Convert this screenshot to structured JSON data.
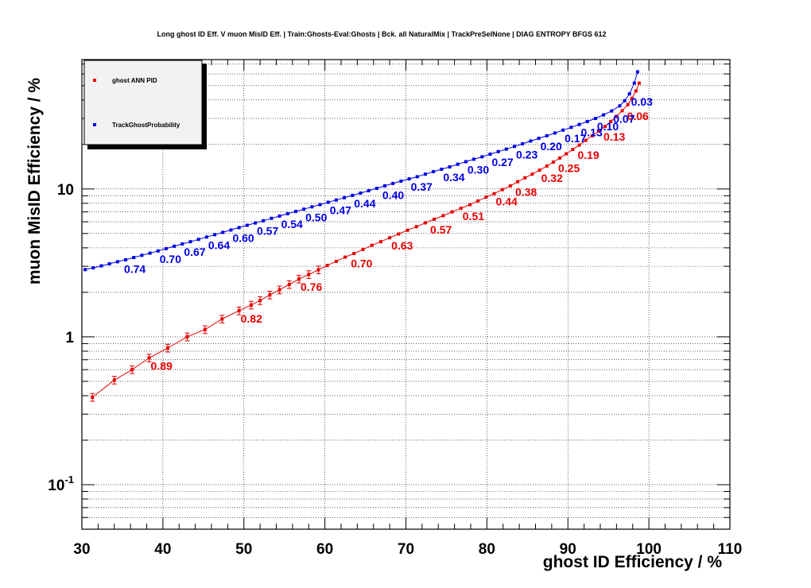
{
  "chart_data": {
    "type": "scatter",
    "title": "Long ghost ID Eff. V muon MisID Eff. | Train:Ghosts-Eval:Ghosts | Bck. all NaturalMix | TrackPreSelNone | DIAG ENTROPY BFGS 612",
    "xlabel": "ghost ID Efficiency / %",
    "ylabel": "muon MisID Efficiency / %",
    "xlim": [
      30,
      110
    ],
    "ylim": [
      0.05,
      75
    ],
    "yscale": "log",
    "grid": true,
    "legend_position": "top-left",
    "x_tick_labels": [
      "30",
      "40",
      "50",
      "60",
      "70",
      "80",
      "90",
      "100",
      "110"
    ],
    "y_tick_labels": [
      {
        "value": 0.1,
        "base": "10",
        "exp": "-1"
      },
      {
        "value": 1,
        "base": "1",
        "exp": ""
      },
      {
        "value": 10,
        "base": "10",
        "exp": ""
      }
    ],
    "series": [
      {
        "name": "ghost ANN PID",
        "color": "#e60000",
        "points": [
          [
            31.3,
            0.39
          ],
          [
            34.0,
            0.51
          ],
          [
            36.2,
            0.6
          ],
          [
            38.3,
            0.72
          ],
          [
            40.6,
            0.84
          ],
          [
            43.0,
            1.0
          ],
          [
            45.2,
            1.12
          ],
          [
            47.3,
            1.32
          ],
          [
            49.4,
            1.5
          ],
          [
            50.9,
            1.64
          ],
          [
            52.0,
            1.76
          ],
          [
            53.2,
            1.92
          ],
          [
            54.4,
            2.08
          ],
          [
            55.6,
            2.26
          ],
          [
            56.8,
            2.46
          ],
          [
            58.0,
            2.64
          ],
          [
            59.2,
            2.84
          ],
          [
            60.3,
            3.04
          ],
          [
            61.4,
            3.24
          ],
          [
            62.5,
            3.46
          ],
          [
            63.6,
            3.66
          ],
          [
            64.7,
            3.9
          ],
          [
            65.8,
            4.16
          ],
          [
            66.9,
            4.4
          ],
          [
            68.0,
            4.68
          ],
          [
            69.1,
            4.96
          ],
          [
            70.2,
            5.26
          ],
          [
            71.3,
            5.56
          ],
          [
            72.4,
            5.9
          ],
          [
            73.5,
            6.24
          ],
          [
            74.6,
            6.6
          ],
          [
            75.7,
            7.0
          ],
          [
            76.8,
            7.4
          ],
          [
            77.9,
            7.84
          ],
          [
            78.9,
            8.3
          ],
          [
            79.9,
            8.8
          ],
          [
            80.9,
            9.3
          ],
          [
            81.9,
            9.9
          ],
          [
            82.9,
            10.5
          ],
          [
            83.8,
            11.2
          ],
          [
            84.7,
            11.9
          ],
          [
            85.6,
            12.6
          ],
          [
            86.5,
            13.4
          ],
          [
            87.4,
            14.3
          ],
          [
            88.2,
            15.2
          ],
          [
            89.0,
            16.2
          ],
          [
            89.8,
            17.3
          ],
          [
            90.6,
            18.5
          ],
          [
            91.4,
            19.8
          ],
          [
            92.2,
            21.3
          ],
          [
            93.0,
            22.9
          ],
          [
            93.8,
            24.6
          ],
          [
            94.6,
            26.5
          ],
          [
            95.3,
            28.6
          ],
          [
            96.0,
            31.0
          ],
          [
            96.7,
            33.8
          ],
          [
            97.4,
            37.2
          ],
          [
            97.9,
            41.0
          ],
          [
            98.4,
            46.0
          ],
          [
            98.8,
            52.0
          ]
        ],
        "labels": [
          {
            "x": 38.3,
            "y": 0.72,
            "text": "0.89"
          },
          {
            "x": 49.4,
            "y": 1.5,
            "text": "0.82"
          },
          {
            "x": 56.8,
            "y": 2.46,
            "text": "0.76"
          },
          {
            "x": 63.0,
            "y": 3.55,
            "text": "0.70"
          },
          {
            "x": 68.0,
            "y": 4.68,
            "text": "0.63"
          },
          {
            "x": 72.8,
            "y": 6.0,
            "text": "0.57"
          },
          {
            "x": 76.8,
            "y": 7.4,
            "text": "0.51"
          },
          {
            "x": 80.9,
            "y": 9.3,
            "text": "0.44"
          },
          {
            "x": 83.3,
            "y": 10.8,
            "text": "0.38"
          },
          {
            "x": 86.5,
            "y": 13.4,
            "text": "0.32"
          },
          {
            "x": 88.6,
            "y": 15.7,
            "text": "0.25"
          },
          {
            "x": 91.0,
            "y": 19.2,
            "text": "0.19"
          },
          {
            "x": 94.2,
            "y": 25.5,
            "text": "0.13"
          },
          {
            "x": 97.1,
            "y": 35.3,
            "text": "0.06"
          }
        ]
      },
      {
        "name": "TrackGhostProbability",
        "color": "#0000e6",
        "points": [
          [
            30.4,
            2.85
          ],
          [
            31.4,
            2.93
          ],
          [
            32.4,
            3.02
          ],
          [
            33.4,
            3.12
          ],
          [
            34.4,
            3.22
          ],
          [
            35.4,
            3.32
          ],
          [
            36.4,
            3.44
          ],
          [
            37.4,
            3.56
          ],
          [
            38.4,
            3.68
          ],
          [
            39.4,
            3.81
          ],
          [
            40.4,
            3.95
          ],
          [
            41.4,
            4.1
          ],
          [
            42.4,
            4.25
          ],
          [
            43.4,
            4.4
          ],
          [
            44.4,
            4.56
          ],
          [
            45.4,
            4.73
          ],
          [
            46.4,
            4.91
          ],
          [
            47.4,
            5.09
          ],
          [
            48.4,
            5.28
          ],
          [
            49.4,
            5.48
          ],
          [
            50.4,
            5.68
          ],
          [
            51.4,
            5.89
          ],
          [
            52.4,
            6.1
          ],
          [
            53.4,
            6.33
          ],
          [
            54.4,
            6.56
          ],
          [
            55.4,
            6.8
          ],
          [
            56.4,
            7.05
          ],
          [
            57.4,
            7.3
          ],
          [
            58.4,
            7.57
          ],
          [
            59.4,
            7.84
          ],
          [
            60.4,
            8.13
          ],
          [
            61.4,
            8.42
          ],
          [
            62.4,
            8.73
          ],
          [
            63.4,
            9.05
          ],
          [
            64.4,
            9.38
          ],
          [
            65.4,
            9.73
          ],
          [
            66.4,
            10.1
          ],
          [
            67.4,
            10.5
          ],
          [
            68.4,
            10.9
          ],
          [
            69.4,
            11.3
          ],
          [
            70.4,
            11.7
          ],
          [
            71.4,
            12.1
          ],
          [
            72.4,
            12.6
          ],
          [
            73.4,
            13.1
          ],
          [
            74.4,
            13.6
          ],
          [
            75.4,
            14.1
          ],
          [
            76.4,
            14.7
          ],
          [
            77.4,
            15.3
          ],
          [
            78.4,
            15.9
          ],
          [
            79.4,
            16.5
          ],
          [
            80.4,
            17.2
          ],
          [
            81.4,
            17.9
          ],
          [
            82.4,
            18.6
          ],
          [
            83.4,
            19.4
          ],
          [
            84.4,
            20.2
          ],
          [
            85.4,
            21.1
          ],
          [
            86.4,
            22.0
          ],
          [
            87.4,
            22.9
          ],
          [
            88.4,
            23.9
          ],
          [
            89.4,
            25.0
          ],
          [
            90.4,
            26.1
          ],
          [
            91.4,
            27.3
          ],
          [
            92.4,
            28.6
          ],
          [
            93.4,
            30.0
          ],
          [
            94.4,
            31.7
          ],
          [
            95.4,
            33.7
          ],
          [
            96.4,
            36.5
          ],
          [
            97.0,
            39.5
          ],
          [
            97.6,
            44.0
          ],
          [
            98.2,
            52.0
          ],
          [
            98.6,
            62.0
          ]
        ],
        "labels": [
          {
            "x": 35.0,
            "y": 3.26,
            "text": "0.74"
          },
          {
            "x": 39.4,
            "y": 3.81,
            "text": "0.70"
          },
          {
            "x": 42.4,
            "y": 4.25,
            "text": "0.67"
          },
          {
            "x": 45.4,
            "y": 4.73,
            "text": "0.64"
          },
          {
            "x": 48.4,
            "y": 5.28,
            "text": "0.60"
          },
          {
            "x": 51.4,
            "y": 5.89,
            "text": "0.57"
          },
          {
            "x": 54.4,
            "y": 6.56,
            "text": "0.54"
          },
          {
            "x": 57.4,
            "y": 7.3,
            "text": "0.50"
          },
          {
            "x": 60.4,
            "y": 8.13,
            "text": "0.47"
          },
          {
            "x": 63.4,
            "y": 9.05,
            "text": "0.44"
          },
          {
            "x": 66.9,
            "y": 10.3,
            "text": "0.40"
          },
          {
            "x": 70.4,
            "y": 11.7,
            "text": "0.37"
          },
          {
            "x": 74.4,
            "y": 13.6,
            "text": "0.34"
          },
          {
            "x": 77.4,
            "y": 15.3,
            "text": "0.30"
          },
          {
            "x": 80.4,
            "y": 17.2,
            "text": "0.27"
          },
          {
            "x": 83.4,
            "y": 19.4,
            "text": "0.23"
          },
          {
            "x": 86.4,
            "y": 22.0,
            "text": "0.20"
          },
          {
            "x": 89.4,
            "y": 25.0,
            "text": "0.17"
          },
          {
            "x": 91.4,
            "y": 27.3,
            "text": "0.13"
          },
          {
            "x": 93.4,
            "y": 30.0,
            "text": "0.10"
          },
          {
            "x": 95.4,
            "y": 33.7,
            "text": "0.07"
          },
          {
            "x": 97.6,
            "y": 44.0,
            "text": "0.03"
          }
        ]
      }
    ]
  }
}
